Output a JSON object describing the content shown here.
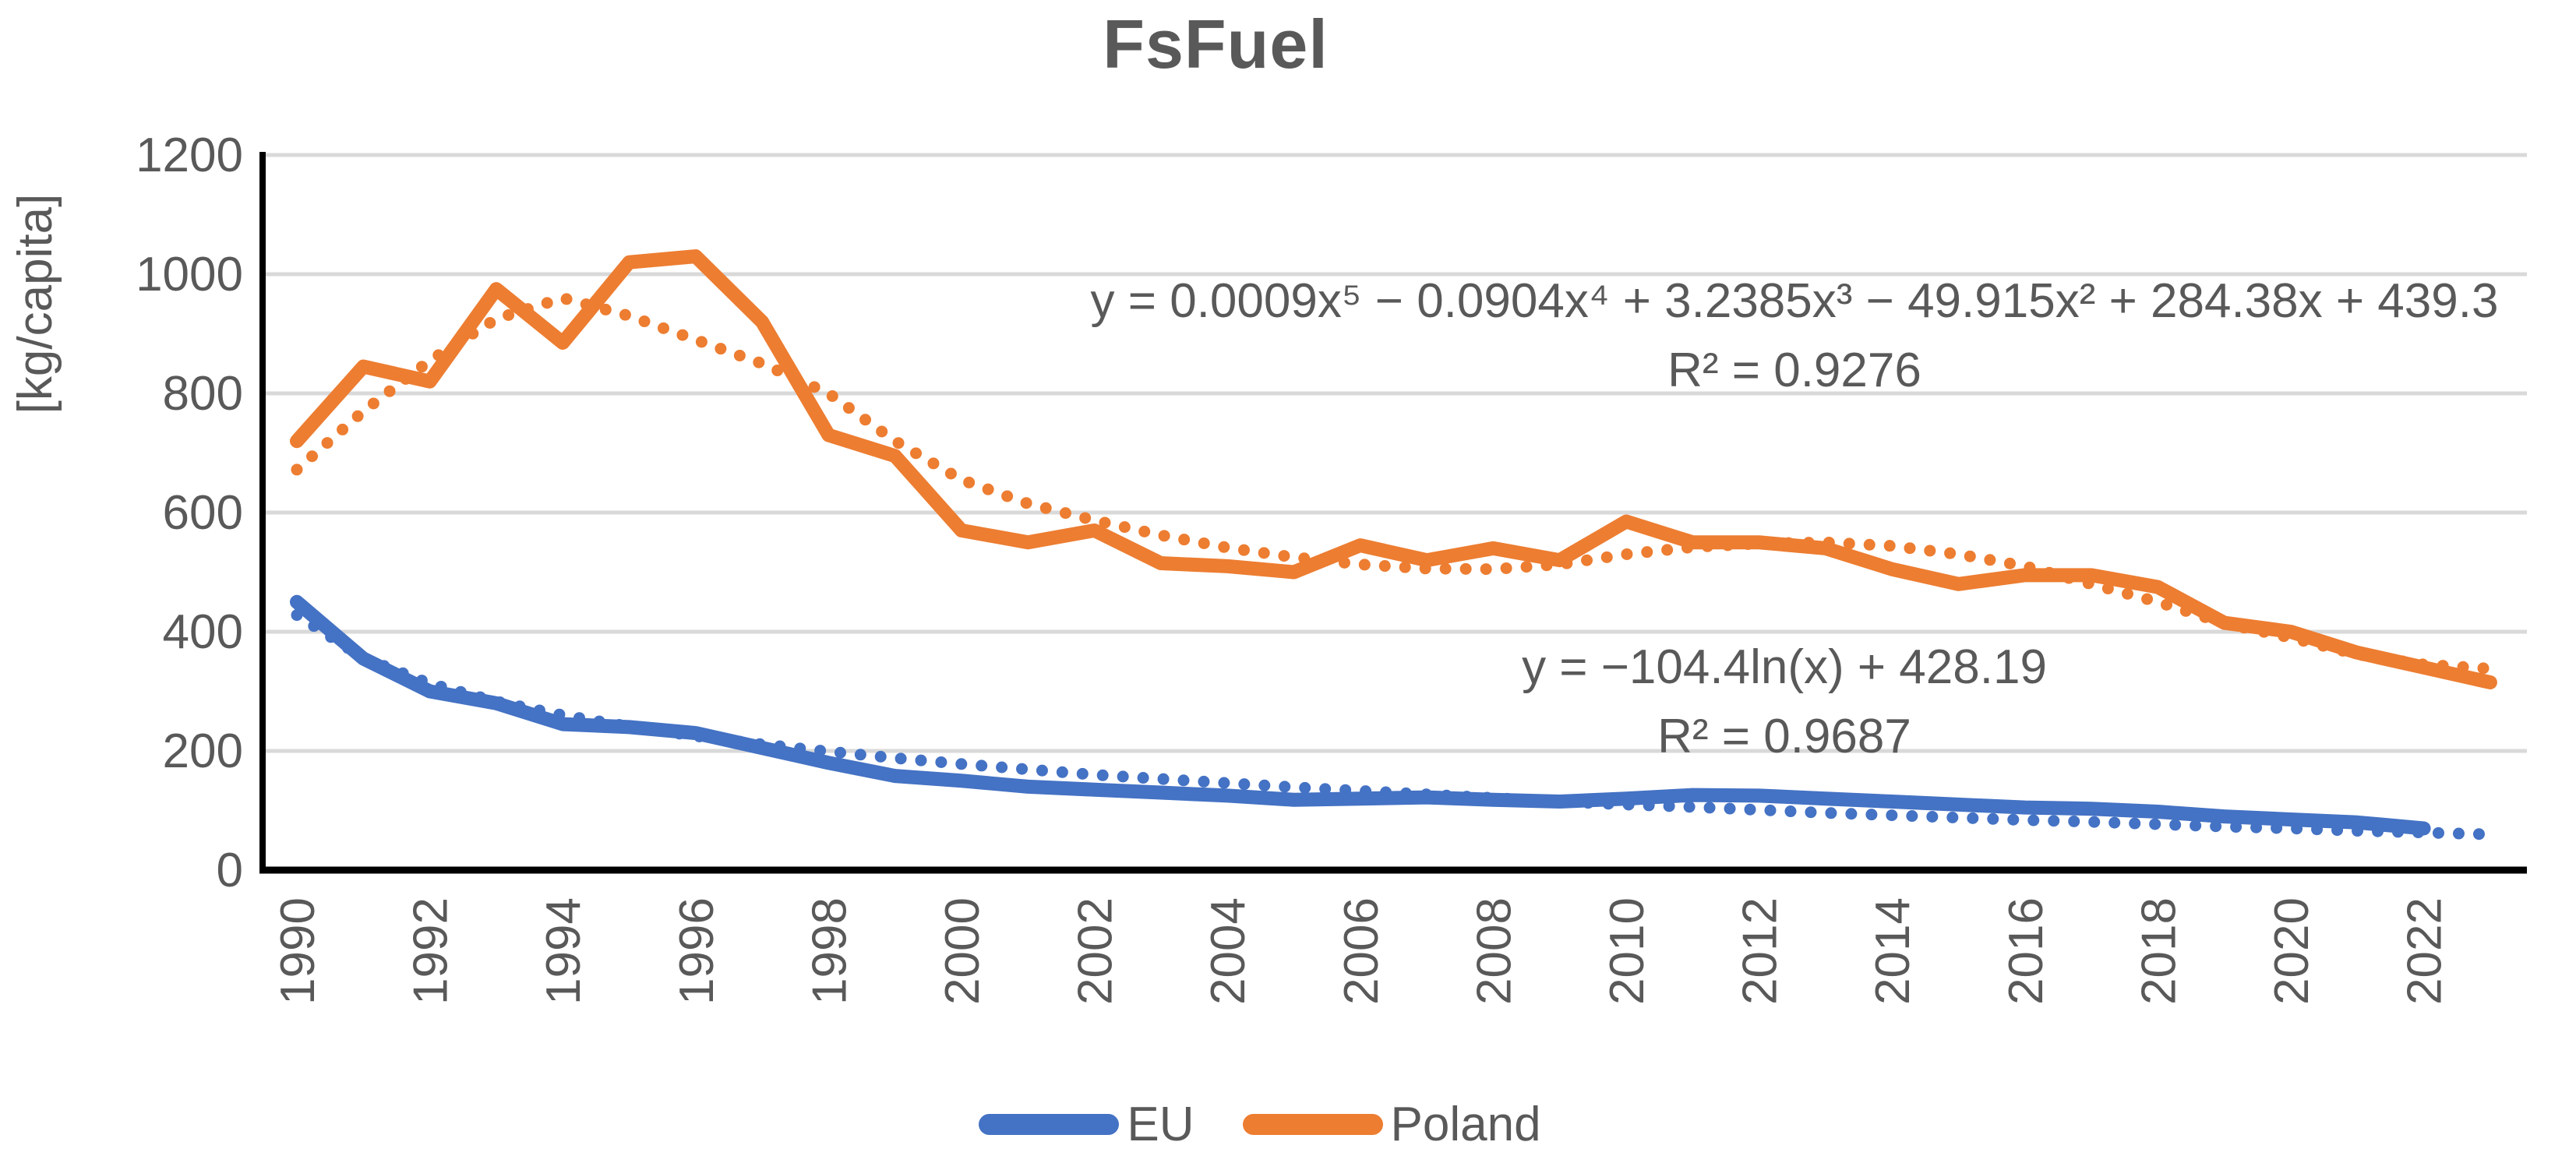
{
  "title": "FsFuel",
  "y_axis": {
    "label": "[kg/capita]",
    "min": 0,
    "max": 1200,
    "tick_step": 200,
    "tick_labels": [
      "0",
      "200",
      "400",
      "600",
      "800",
      "1000",
      "1200"
    ]
  },
  "x_axis": {
    "tick_labels": [
      "1990",
      "1992",
      "1994",
      "1996",
      "1998",
      "2000",
      "2002",
      "2004",
      "2006",
      "2008",
      "2010",
      "2012",
      "2014",
      "2016",
      "2018",
      "2020",
      "2022"
    ]
  },
  "legend": {
    "items": [
      {
        "label": "EU",
        "color": "#4472C4"
      },
      {
        "label": "Poland",
        "color": "#ED7D31"
      }
    ]
  },
  "annotations": {
    "poland_trend_eq": "y = 0.0009x⁵ − 0.0904x⁴ + 3.2385x³ − 49.915x² + 284.38x + 439.3",
    "poland_trend_r2": "R² = 0.9276",
    "eu_trend_eq": "y = −104.4ln(x) + 428.19",
    "eu_trend_r2": "R² = 0.9687"
  },
  "colors": {
    "eu": "#4472C4",
    "poland": "#ED7D31",
    "text": "#595959",
    "gridline": "#D9D9D9",
    "axis": "#000000"
  },
  "chart_data": {
    "type": "line",
    "title": "FsFuel",
    "ylabel": "[kg/capita]",
    "ylim": [
      0,
      1200
    ],
    "grid": true,
    "legend_position": "bottom",
    "x": [
      1990,
      1991,
      1992,
      1993,
      1994,
      1995,
      1996,
      1997,
      1998,
      1999,
      2000,
      2001,
      2002,
      2003,
      2004,
      2005,
      2006,
      2007,
      2008,
      2009,
      2010,
      2011,
      2012,
      2013,
      2014,
      2015,
      2016,
      2017,
      2018,
      2019,
      2020,
      2021,
      2022,
      2023
    ],
    "series": [
      {
        "name": "EU",
        "color": "#4472C4",
        "style": "solid",
        "values": [
          450,
          355,
          300,
          280,
          245,
          240,
          230,
          205,
          180,
          158,
          150,
          140,
          135,
          130,
          125,
          118,
          120,
          122,
          118,
          115,
          120,
          126,
          125,
          120,
          115,
          110,
          105,
          103,
          98,
          90,
          85,
          80,
          70,
          null
        ]
      },
      {
        "name": "Poland",
        "color": "#ED7D31",
        "style": "solid",
        "values": [
          720,
          845,
          820,
          975,
          885,
          1020,
          1030,
          920,
          730,
          695,
          570,
          550,
          570,
          515,
          510,
          500,
          545,
          520,
          540,
          520,
          585,
          550,
          550,
          540,
          505,
          480,
          495,
          495,
          475,
          415,
          400,
          365,
          340,
          315
        ]
      }
    ],
    "trendlines": [
      {
        "name": "EU logarithmic trend",
        "series": "EU",
        "kind": "logarithmic",
        "equation": "y = −104.4ln(x) + 428.19",
        "r2": 0.9687,
        "color": "#4472C4",
        "values": [
          428,
          356,
          313,
          283,
          260,
          241,
          225,
          211,
          199,
          188,
          178,
          169,
          160,
          153,
          146,
          139,
          133,
          127,
          121,
          115,
          110,
          106,
          101,
          96,
          92,
          88,
          84,
          81,
          77,
          73,
          70,
          66,
          63,
          60
        ]
      },
      {
        "name": "Poland polynomial trend (order 5)",
        "series": "Poland",
        "kind": "polynomial-5",
        "equation": "y = 0.0009x⁵ − 0.0904x⁴ + 3.2385x³ − 49.915x² + 284.38x + 439.3",
        "r2": 0.9276,
        "color": "#ED7D31",
        "values": [
          672,
          770,
          855,
          925,
          960,
          930,
          890,
          850,
          800,
          720,
          655,
          615,
          587,
          562,
          541,
          525,
          513,
          506,
          505,
          513,
          530,
          542,
          548,
          550,
          544,
          530,
          510,
          480,
          450,
          414,
          390,
          362,
          345,
          338
        ]
      }
    ]
  }
}
